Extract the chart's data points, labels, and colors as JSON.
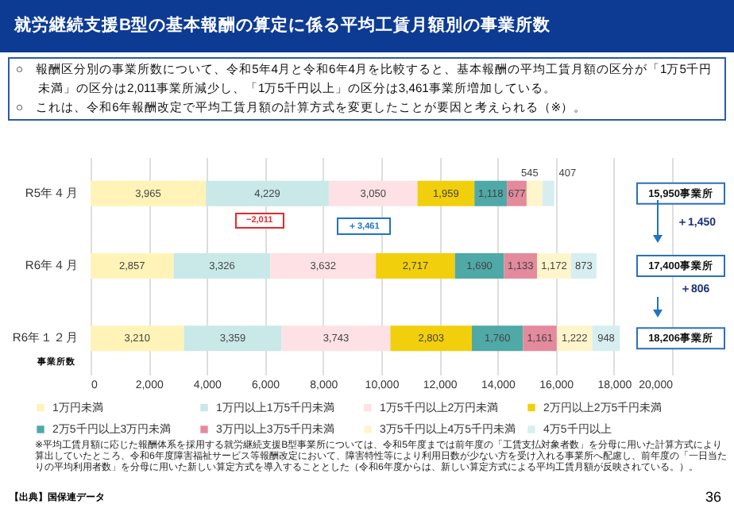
{
  "chart_data": {
    "type": "bar",
    "orientation": "horizontal",
    "stacked": true,
    "title": "就労継続支援B型の基本報酬の算定に係る平均工賃月額別の事業所数",
    "xlabel": "事業所数",
    "categories": [
      "R5年４月",
      "R6年４月",
      "R6年１２月"
    ],
    "series": [
      {
        "name": "1万円未満",
        "color": "#fff3b8",
        "values": [
          3965,
          2857,
          3210
        ],
        "value_labels": [
          "3,965",
          "2,857",
          "3,210"
        ]
      },
      {
        "name": "1万円以上1万5千円未満",
        "color": "#c9e8e8",
        "values": [
          4229,
          3326,
          3359
        ],
        "value_labels": [
          "4,229",
          "3,326",
          "3,359"
        ]
      },
      {
        "name": "1万5千円以上2万円未満",
        "color": "#fde1e4",
        "values": [
          3050,
          3632,
          3743
        ],
        "value_labels": [
          "3,050",
          "3,632",
          "3,743"
        ]
      },
      {
        "name": "2万円以上2万5千円未満",
        "color": "#f2cf0c",
        "values": [
          1959,
          2717,
          2803
        ],
        "value_labels": [
          "1,959",
          "2,717",
          "2,803"
        ]
      },
      {
        "name": "2万5千円以上3万円未満",
        "color": "#4fa9a6",
        "values": [
          1118,
          1690,
          1760
        ],
        "value_labels": [
          "1,118",
          "1,690",
          "1,760"
        ]
      },
      {
        "name": "3万円以上3万5千円未満",
        "color": "#e38a9c",
        "values": [
          677,
          1133,
          1161
        ],
        "value_labels": [
          "677",
          "1,133",
          "1,161"
        ]
      },
      {
        "name": "3万5千円以上4万5千円未満",
        "color": "#fff5cc",
        "values": [
          545,
          1172,
          1222
        ],
        "value_labels": [
          "545",
          "1,172",
          "1,222"
        ]
      },
      {
        "name": "4万5千円以上",
        "color": "#d6eef0",
        "values": [
          407,
          873,
          948
        ],
        "value_labels": [
          "407",
          "873",
          "948"
        ]
      }
    ],
    "xlim": [
      0,
      20000
    ],
    "xticks": [
      {
        "value": 0,
        "label": "0"
      },
      {
        "value": 2000,
        "label": "2,000"
      },
      {
        "value": 4000,
        "label": "4,000"
      },
      {
        "value": 6000,
        "label": "6,000"
      },
      {
        "value": 8000,
        "label": "8,000"
      },
      {
        "value": 10000,
        "label": "10,000"
      },
      {
        "value": 12000,
        "label": "12,000"
      },
      {
        "value": 14000,
        "label": "14,000"
      },
      {
        "value": 16000,
        "label": "16,000"
      },
      {
        "value": 18000,
        "label": "18,000"
      },
      {
        "value": 20000,
        "label": "20,000"
      }
    ],
    "grid": "x",
    "legend": "bottom",
    "annotations": [
      "○　報酬区分別の事業所数について、令和5年4月と令和6年4月を比較すると、基本報酬の平均工賃月額の区分が「1万5千円未満」の区分は2,011事業所減少し、「1万5千円以上」の区分は3,461事業所増加している。",
      "○　これは、令和6年報酬改定で平均工賃月額の計算方式を変更したことが要因と考えられる（※）。",
      "−2,011",
      "＋3,461",
      "＋1,450",
      "＋806",
      "※平均工賃月額に応じた報酬体系を採用する就労継続支援B型事業所については、令和5年度までは前年度の「工賃支払対象者数」を分母に用いた計算方式により算出していたところ、令和6年度障害福祉サービス等報酬改定において、障害特性等により利用日数が少ない方を受け入れる事業所へ配慮し、前年度の「一日当たりの平均利用者数」を分母に用いた新しい算定方式を導入することとした（令和6年度からは、新しい算定方式による平均工賃月額が反映されている。）。",
      "【出典】国保連データ",
      "36",
      "15,950事業所",
      "17,400事業所",
      "18,206事業所"
    ]
  }
}
